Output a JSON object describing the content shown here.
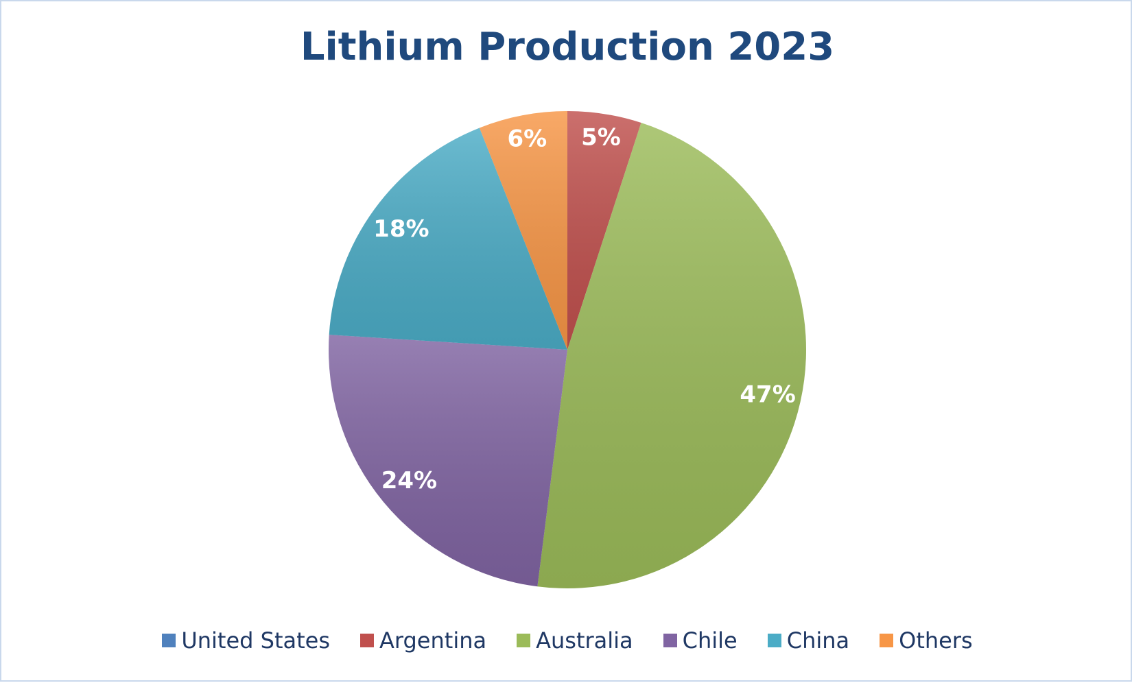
{
  "chart_data": {
    "type": "pie",
    "title": "Lithium Production 2023",
    "categories": [
      "United States",
      "Argentina",
      "Australia",
      "Chile",
      "China",
      "Others"
    ],
    "values": [
      0,
      5,
      47,
      24,
      18,
      6
    ],
    "labels": [
      "",
      "5%",
      "47%",
      "24%",
      "18%",
      "6%"
    ],
    "colors": [
      "#4f81bd",
      "#c0504d",
      "#9bbb59",
      "#8064a2",
      "#4bacc6",
      "#f79646"
    ],
    "start_angle": "12 o'clock",
    "direction": "clockwise",
    "legend_position": "bottom"
  }
}
